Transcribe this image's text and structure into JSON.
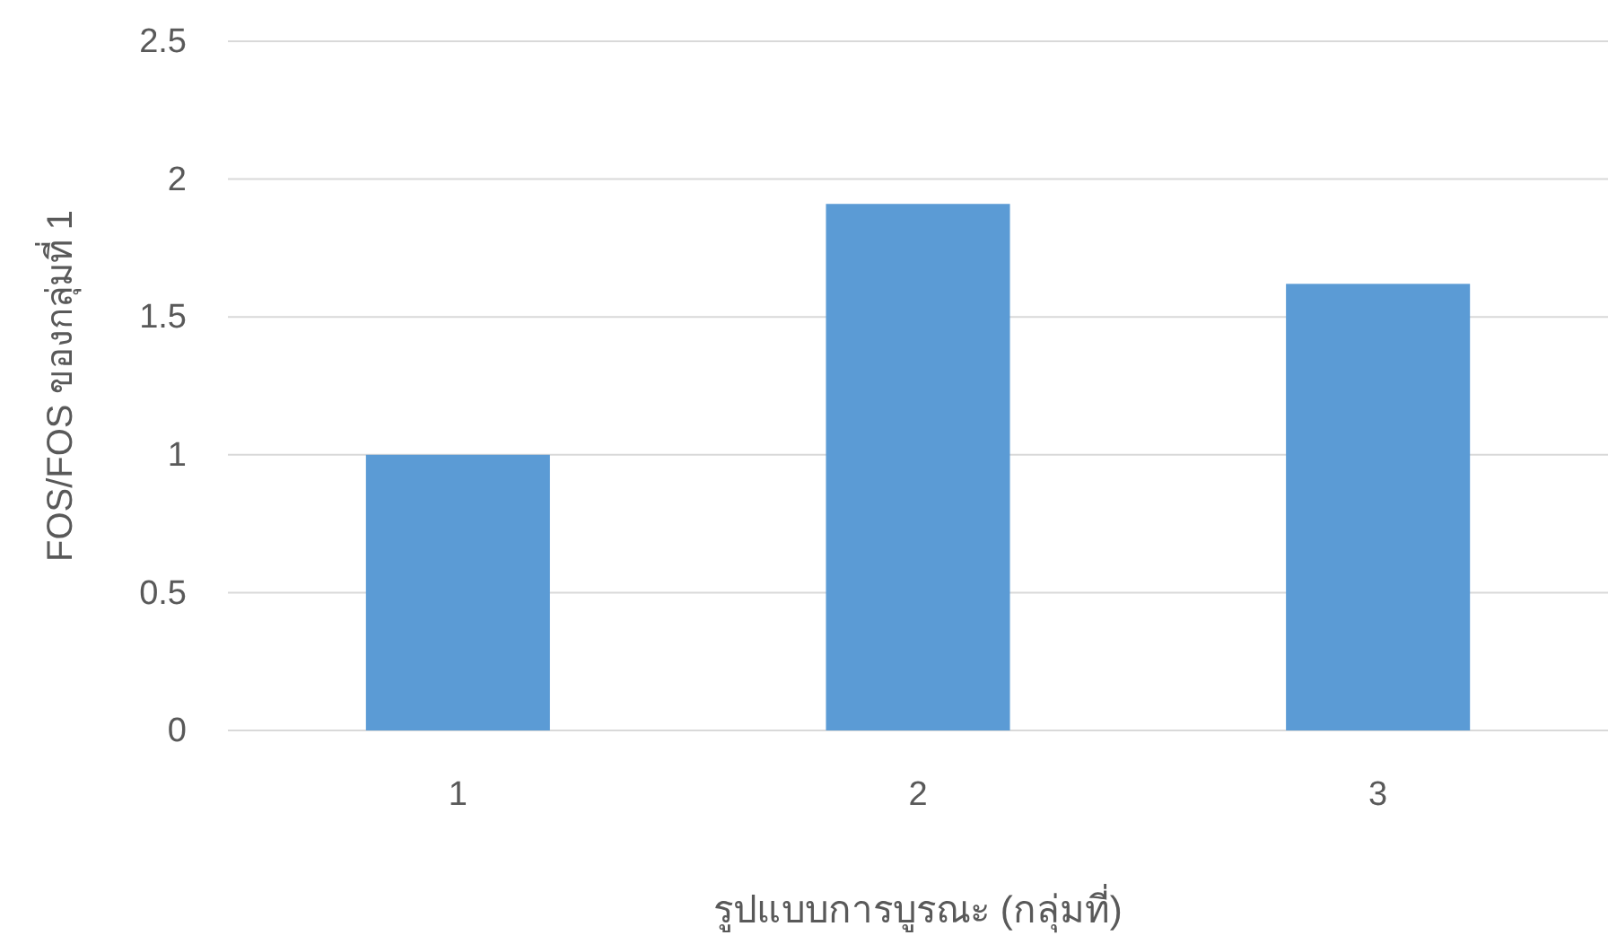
{
  "chart_data": {
    "type": "bar",
    "xlabel": "รูปแบบการบูรณะ (กลุ่มที่)",
    "ylabel": "FOS/FOS ของกลุ่มที่ 1",
    "categories": [
      "1",
      "2",
      "3"
    ],
    "values": [
      1.0,
      1.91,
      1.62
    ],
    "color": "#5b9bd5",
    "ylim": [
      0,
      2.5
    ],
    "yticks": [
      0,
      0.5,
      1,
      1.5,
      2,
      2.5
    ],
    "grid": "y"
  }
}
